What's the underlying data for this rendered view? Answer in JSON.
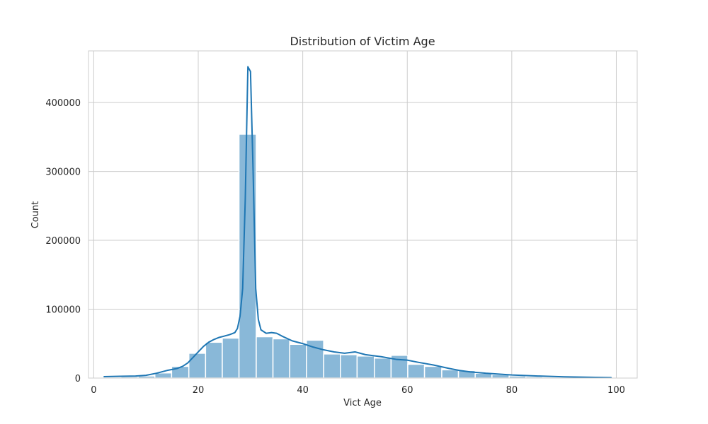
{
  "chart_data": {
    "type": "bar",
    "title": "Distribution of Victim Age",
    "xlabel": "Vict Age",
    "ylabel": "Count",
    "xlim": [
      -1,
      104
    ],
    "ylim": [
      0,
      475000
    ],
    "grid": true,
    "x_ticks": [
      0,
      20,
      40,
      60,
      80,
      100
    ],
    "y_ticks": [
      0,
      100000,
      200000,
      300000,
      400000
    ],
    "bin_edges": [
      2,
      5.2,
      8.5,
      11.7,
      14.9,
      18.2,
      21.4,
      24.6,
      27.8,
      31.1,
      34.3,
      37.5,
      40.7,
      44.0,
      47.2,
      50.4,
      53.7,
      56.9,
      60.1,
      63.3,
      66.6,
      69.8,
      73.0,
      76.2,
      79.5,
      82.7,
      85.9,
      89.2,
      92.4,
      95.6,
      98.8
    ],
    "values": [
      1000,
      2000,
      3000,
      7500,
      17000,
      36000,
      52000,
      58000,
      354000,
      60000,
      57000,
      49000,
      55000,
      35000,
      34000,
      32000,
      29000,
      33000,
      20000,
      17000,
      12000,
      11000,
      7000,
      5000,
      3000,
      2000,
      1000,
      500,
      500,
      300
    ],
    "kde": {
      "x": [
        2,
        5,
        8,
        10,
        12,
        14,
        16,
        17,
        18,
        19,
        20,
        21,
        22,
        23,
        24,
        25,
        26,
        27,
        27.5,
        28,
        28.5,
        29,
        29.5,
        30,
        30.5,
        31,
        31.5,
        32,
        33,
        34,
        35,
        36,
        38,
        40,
        42,
        44,
        46,
        48,
        50,
        52,
        55,
        58,
        60,
        62,
        65,
        68,
        70,
        72,
        75,
        80,
        85,
        90,
        95,
        99
      ],
      "y": [
        2000,
        2500,
        3000,
        4000,
        7000,
        11000,
        14000,
        17000,
        22000,
        30000,
        38000,
        46000,
        52000,
        56000,
        59000,
        61000,
        63000,
        66000,
        72000,
        90000,
        130000,
        260000,
        452000,
        445000,
        300000,
        130000,
        85000,
        70000,
        65000,
        66000,
        65000,
        61000,
        54000,
        50000,
        45000,
        41000,
        38000,
        36000,
        38000,
        34000,
        31000,
        27000,
        26000,
        23000,
        19000,
        14000,
        11000,
        9000,
        7000,
        4500,
        3000,
        1800,
        1200,
        700
      ]
    },
    "colors": {
      "bar_fill": "#89b8d8",
      "bar_edge": "#ffffff",
      "kde_line": "#1f77b4",
      "grid": "#cccccc",
      "frame": "#cccccc"
    }
  }
}
